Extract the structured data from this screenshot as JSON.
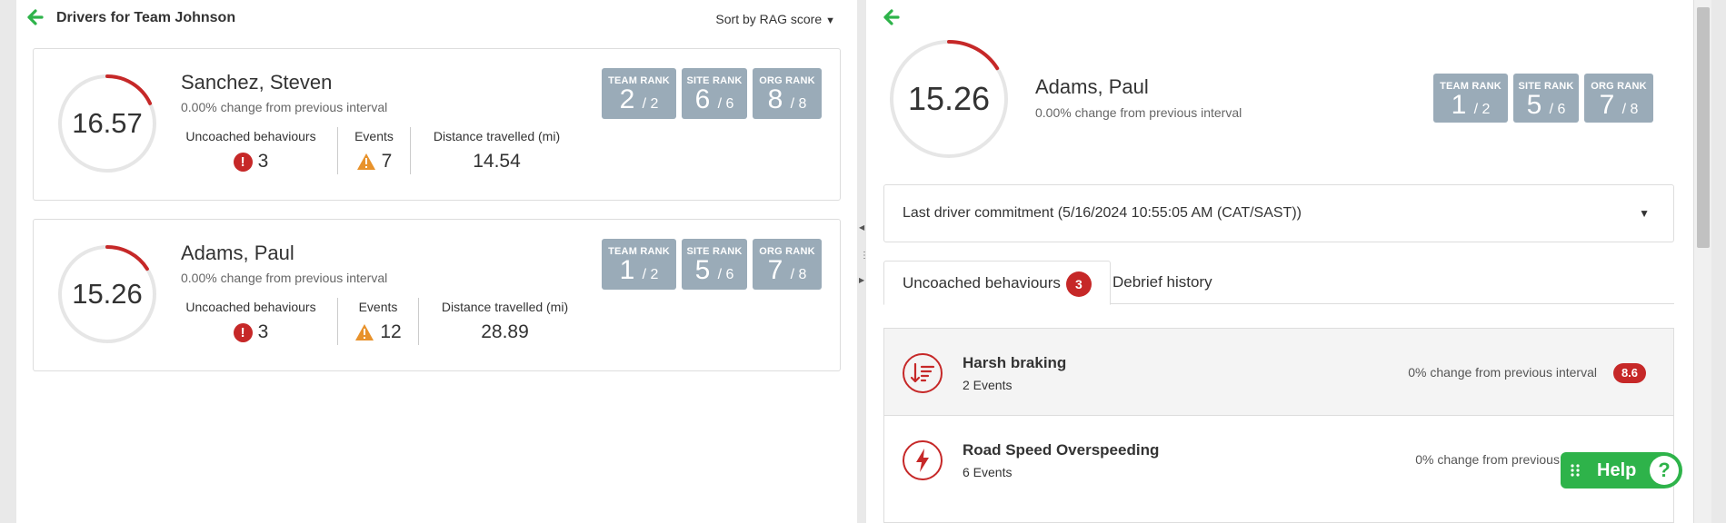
{
  "left_panel": {
    "title": "Drivers for Team Johnson",
    "sort_label": "Sort by RAG score",
    "drivers": [
      {
        "score": "16.57",
        "score_fraction": 0.18,
        "name": "Sanchez, Steven",
        "change": "0.00% change from previous interval",
        "uncoached_label": "Uncoached behaviours",
        "uncoached_value": "3",
        "events_label": "Events",
        "events_value": "7",
        "distance_label": "Distance travelled (mi)",
        "distance_value": "14.54",
        "ranks": [
          {
            "label": "TEAM RANK",
            "value": "2",
            "of": "/ 2"
          },
          {
            "label": "SITE RANK",
            "value": "6",
            "of": "/ 6"
          },
          {
            "label": "ORG RANK",
            "value": "8",
            "of": "/ 8"
          }
        ]
      },
      {
        "score": "15.26",
        "score_fraction": 0.16,
        "name": "Adams, Paul",
        "change": "0.00% change from previous interval",
        "uncoached_label": "Uncoached behaviours",
        "uncoached_value": "3",
        "events_label": "Events",
        "events_value": "12",
        "distance_label": "Distance travelled (mi)",
        "distance_value": "28.89",
        "ranks": [
          {
            "label": "TEAM RANK",
            "value": "1",
            "of": "/ 2"
          },
          {
            "label": "SITE RANK",
            "value": "5",
            "of": "/ 6"
          },
          {
            "label": "ORG RANK",
            "value": "7",
            "of": "/ 8"
          }
        ]
      }
    ]
  },
  "detail": {
    "score": "15.26",
    "score_fraction": 0.16,
    "name": "Adams, Paul",
    "change": "0.00% change from previous interval",
    "ranks": [
      {
        "label": "TEAM RANK",
        "value": "1",
        "of": "/ 2"
      },
      {
        "label": "SITE RANK",
        "value": "5",
        "of": "/ 6"
      },
      {
        "label": "ORG RANK",
        "value": "7",
        "of": "/ 8"
      }
    ],
    "commitment": "Last driver commitment (5/16/2024 10:55:05 AM (CAT/SAST))",
    "tabs": [
      {
        "label": "Uncoached behaviours",
        "badge": "3"
      },
      {
        "label": "Debrief history"
      }
    ],
    "behaviours": [
      {
        "name": "Harsh braking",
        "events": "2 Events",
        "change": "0% change from previous interval",
        "score": "8.6",
        "icon": "braking-icon"
      },
      {
        "name": "Road Speed Overspeeding",
        "events": "6 Events",
        "change": "0% change from previous interval",
        "icon": "lightning-icon"
      }
    ]
  },
  "help": {
    "label": "Help",
    "icon": "?"
  },
  "colors": {
    "accent_green": "#2eb34a",
    "alert_red": "#c62828",
    "warn_orange": "#e8922b",
    "rank_bg": "#9aabb8"
  }
}
